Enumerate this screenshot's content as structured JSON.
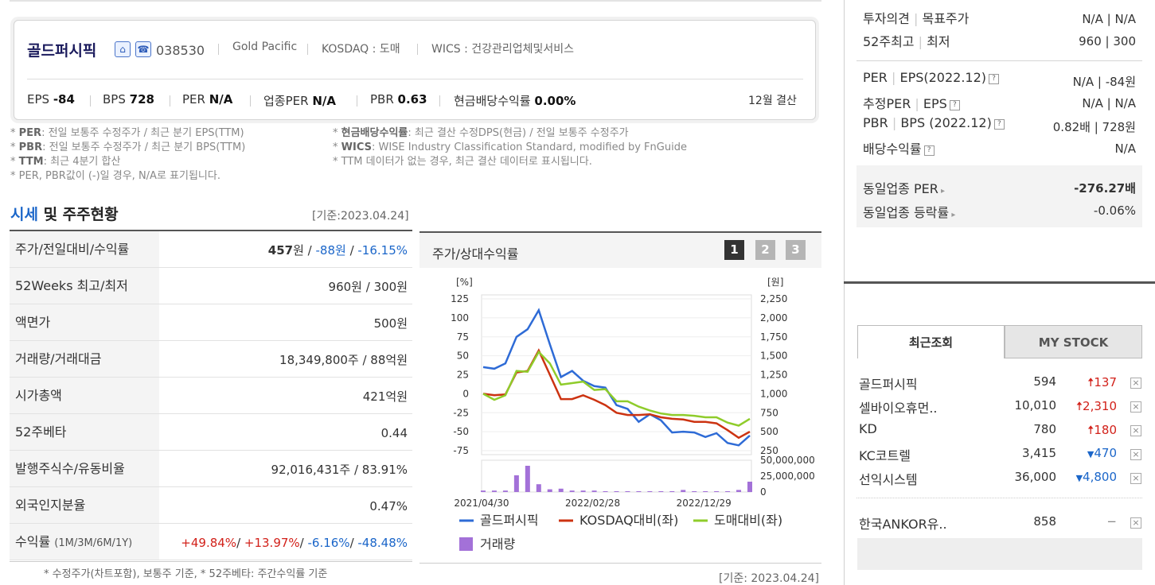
{
  "corp": {
    "name": "골드퍼시픽",
    "code": "038530",
    "eng_name": "Gold Pacific",
    "market": "KOSDAQ : 도매",
    "wics": "WICS : 건강관리업체및서비스",
    "stats": [
      {
        "label": "EPS",
        "value": "-84"
      },
      {
        "label": "BPS",
        "value": "728"
      },
      {
        "label": "PER",
        "value": "N/A"
      },
      {
        "label": "업종PER",
        "value": "N/A"
      },
      {
        "label": "PBR",
        "value": "0.63"
      },
      {
        "label": "현금배당수익률",
        "value": "0.00%"
      }
    ],
    "fiscal": "12월 결산"
  },
  "notes_left": [
    {
      "key": "PER",
      "text": ": 전일 보통주 수정주가 / 최근 분기 EPS(TTM)"
    },
    {
      "key": "PBR",
      "text": ": 전일 보통주 수정주가 / 최근 분기 BPS(TTM)"
    },
    {
      "key": "TTM",
      "text": ": 최근 4분기 합산"
    },
    {
      "key": "",
      "text": "PER, PBR값이 (-)일 경우, N/A로 표기됩니다."
    }
  ],
  "notes_right": [
    {
      "key": "현금배당수익률",
      "text": ": 최근 결산 수정DPS(현금) / 전일 보통주 수정주가"
    },
    {
      "key": "WICS",
      "text": ": WISE Industry Classification Standard, modified by FnGuide"
    },
    {
      "key": "",
      "text": "TTM 데이터가 없는 경우, 최근 결산 데이터로 표시됩니다."
    }
  ],
  "section": {
    "title_blue": "시세",
    "title_rest": " 및 주주현황",
    "basis": "[기준:2023.04.24]"
  },
  "table": {
    "price_label": "주가/전일대비/수익률",
    "price_value": "457",
    "price_unit": "원 / ",
    "price_change": "-88원",
    "price_slash": " / ",
    "price_rate": "-16.15%",
    "rows": [
      {
        "label": "52Weeks 최고/최저",
        "value": "960원 / 300원"
      },
      {
        "label": "액면가",
        "value": "500원"
      },
      {
        "label": "거래량/거래대금",
        "value": "18,349,800주 / 88억원"
      },
      {
        "label": "시가총액",
        "value": "421억원"
      },
      {
        "label": "52주베타",
        "value": "0.44"
      },
      {
        "label": "발행주식수/유동비율",
        "value": "92,016,431주 / 83.91%"
      },
      {
        "label": "외국인지분율",
        "value": "0.47%"
      }
    ],
    "return_label": "수익률",
    "return_sub": "(1M/3M/6M/1Y)",
    "returns": [
      "+49.84%",
      "+13.97%",
      "-6.16%",
      "-48.48%"
    ],
    "footnote": "* 수정주가(차트포함), 보통주 기준, * 52주베타: 주간수익률 기준"
  },
  "chart_panel": {
    "title": "주가/상대수익률",
    "buttons": [
      "1",
      "2",
      "3"
    ],
    "basis": "[기준: 2023.04.24]"
  },
  "chart_data": {
    "type": "line",
    "left_unit": "[%]",
    "right_unit": "[원]",
    "left_ticks": [
      "125",
      "100",
      "75",
      "50",
      "25",
      "0",
      "-25",
      "-50",
      "-75"
    ],
    "right_ticks": [
      "2,250",
      "2,000",
      "1,750",
      "1,500",
      "1,250",
      "1,000",
      "750",
      "500",
      "250"
    ],
    "volume_ticks": [
      "50,000,000",
      "25,000,000",
      "0"
    ],
    "x_ticks": [
      "2021/04/30",
      "2022/02/28",
      "2022/12/29"
    ],
    "ylim_left": [
      -75,
      125
    ],
    "series": [
      {
        "name": "골드퍼시픽",
        "color": "#2e6bd6",
        "values": [
          35,
          33,
          40,
          75,
          85,
          110,
          65,
          22,
          30,
          17,
          10,
          8,
          -15,
          -20,
          -37,
          -27,
          -35,
          -51,
          -50,
          -51,
          -57,
          -52,
          -65,
          -68,
          -55
        ]
      },
      {
        "name": "KOSDAQ대비(좌)",
        "color": "#cc3311",
        "values": [
          0,
          -2,
          -1,
          28,
          30,
          57,
          25,
          -7,
          -7,
          -2,
          -8,
          -15,
          -25,
          -28,
          -28,
          -27,
          -31,
          -33,
          -34,
          -37,
          -37,
          -39,
          -48,
          -58,
          -50
        ]
      },
      {
        "name": "도매대비(좌)",
        "color": "#8fcc2b",
        "values": [
          0,
          -8,
          -2,
          30,
          29,
          55,
          40,
          12,
          14,
          16,
          5,
          6,
          -10,
          -10,
          -17,
          -22,
          -26,
          -28,
          -28,
          -29,
          -31,
          -31,
          -38,
          -42,
          -33
        ]
      }
    ],
    "volume": {
      "name": "거래량",
      "color": "#a371d8",
      "values": [
        1,
        1,
        1,
        25,
        40,
        11,
        3,
        4,
        1,
        1,
        1,
        0,
        0,
        0,
        0,
        0,
        0,
        0,
        2,
        0,
        0,
        0,
        0,
        2,
        15
      ]
    }
  },
  "right_panel": {
    "rows1": [
      {
        "label": "투자의견",
        "sub": "목표주가",
        "value": "N/A | N/A"
      },
      {
        "label": "52주최고",
        "sub": "최저",
        "value": "960 | 300"
      }
    ],
    "rows2": [
      {
        "label": "PER",
        "sub": "EPS(2022.12)",
        "value": "N/A | -84원"
      },
      {
        "label": "추정PER",
        "sub": "EPS",
        "value": "N/A | N/A"
      },
      {
        "label": "PBR",
        "sub": "BPS (2022.12)",
        "value": "0.82배 | 728원"
      },
      {
        "label": "배당수익률",
        "sub": "",
        "value": "N/A"
      }
    ],
    "industry_per_label": "동일업종 PER",
    "industry_per_value": "-276.27배",
    "industry_rate_label": "동일업종 등락률",
    "industry_rate_value": "-0.06%"
  },
  "recent": {
    "tab_recent": "최근조회",
    "tab_my": "MY STOCK",
    "items": [
      {
        "name": "골드퍼시픽",
        "price": "594",
        "change": "137",
        "dir": "up"
      },
      {
        "name": "셀바이오휴먼..",
        "price": "10,010",
        "change": "2,310",
        "dir": "up"
      },
      {
        "name": "KD",
        "price": "780",
        "change": "180",
        "dir": "up"
      },
      {
        "name": "KC코트렐",
        "price": "3,415",
        "change": "470",
        "dir": "down"
      },
      {
        "name": "선익시스템",
        "price": "36,000",
        "change": "4,800",
        "dir": "down"
      },
      {
        "name": "한국ANKOR유..",
        "price": "858",
        "change": "",
        "dir": "flat"
      }
    ]
  }
}
